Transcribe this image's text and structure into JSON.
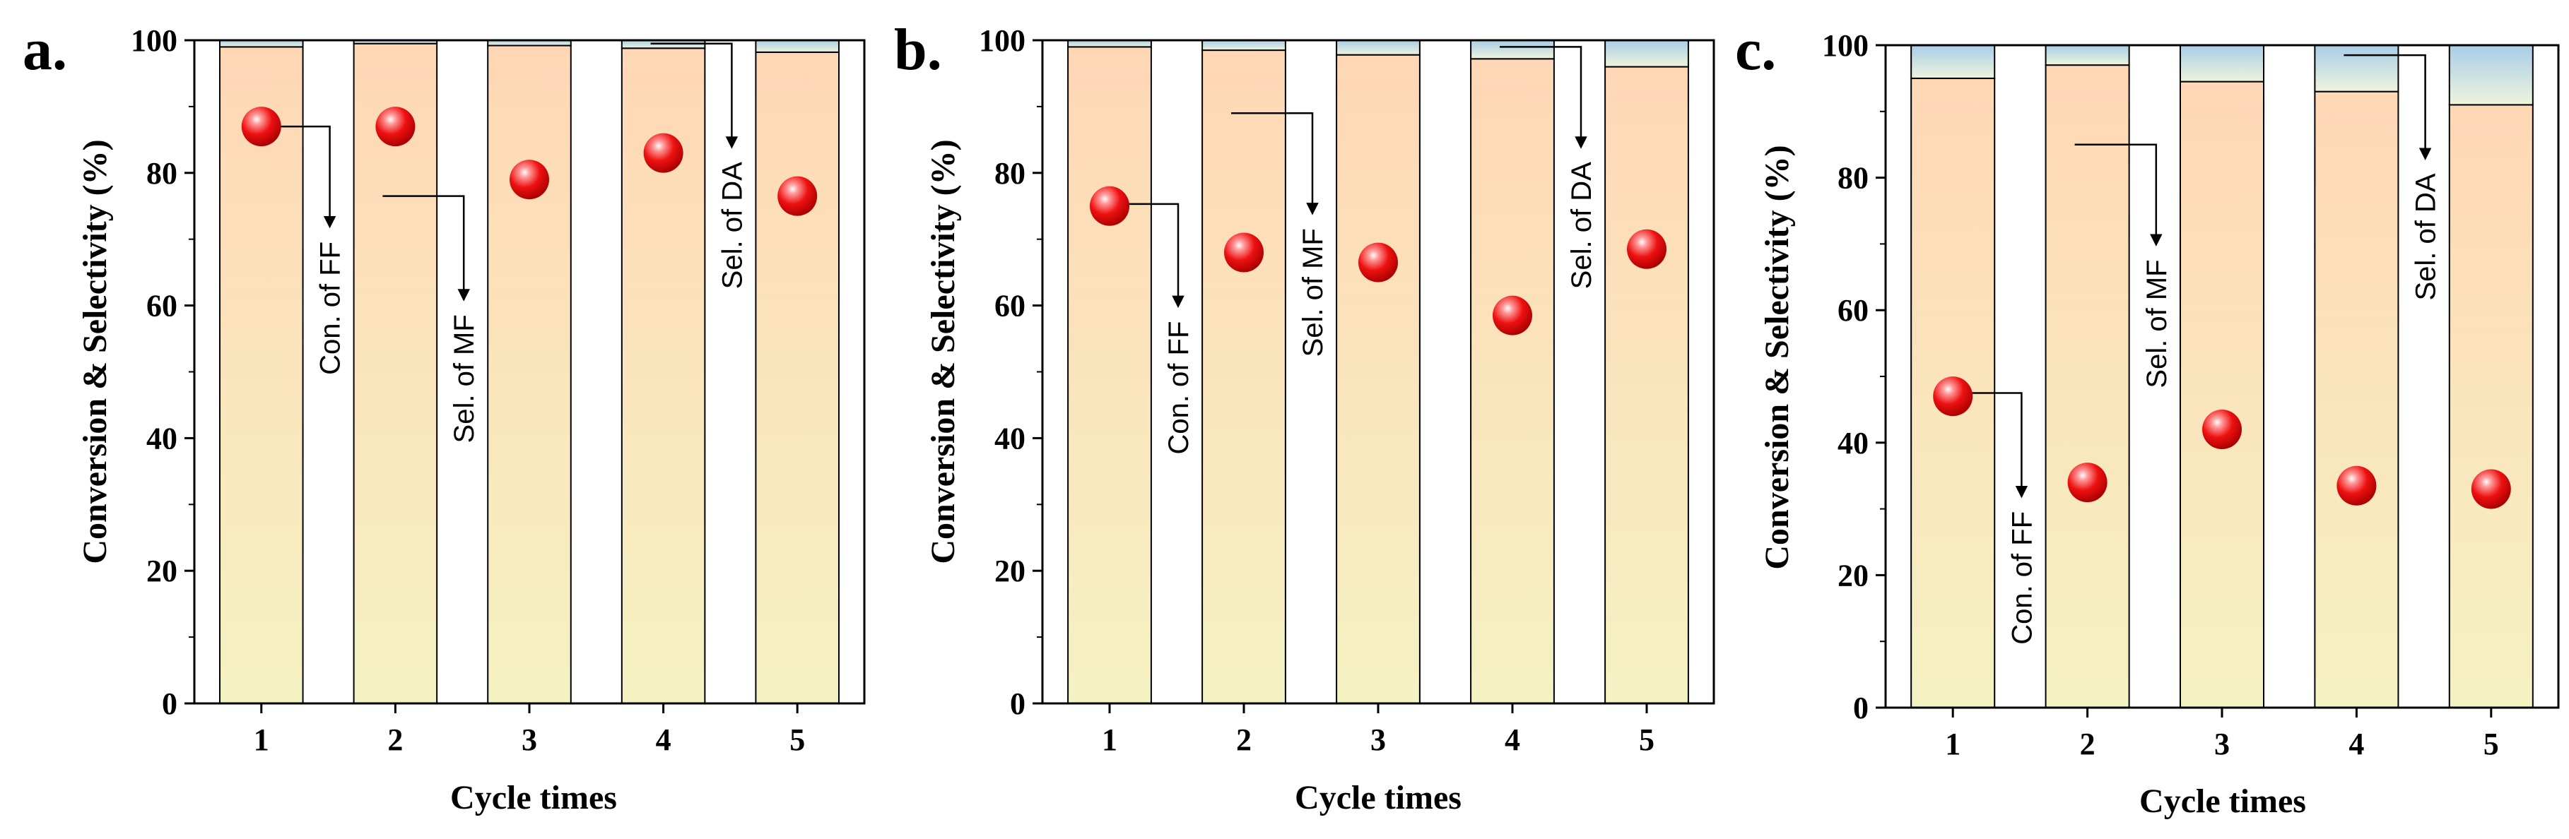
{
  "figure": {
    "panel_labels": [
      "a.",
      "b.",
      "c."
    ]
  },
  "colors": {
    "bar_top": "#ffd7b5",
    "bar_bottom": "#f5f2c2",
    "cap_top": "#a9cde8",
    "cap_bottom": "#eef4dc",
    "marker": "#ee1111",
    "axis": "#000000"
  },
  "chart_data": [
    {
      "type": "bar",
      "panel": "a.",
      "categories": [
        "1",
        "2",
        "3",
        "4",
        "5"
      ],
      "xlabel": "Cycle times",
      "ylabel": "Conversion & Selectivity (%)",
      "ylim": [
        0,
        100
      ],
      "yticks": [
        "0",
        "20",
        "40",
        "60",
        "80",
        "100"
      ],
      "series": [
        {
          "name": "Sel. of MF",
          "kind": "bar",
          "values": [
            99,
            99.5,
            99.2,
            98.8,
            98.2
          ]
        },
        {
          "name": "Sel. of DA",
          "kind": "bar-stacked",
          "values": [
            1,
            0.5,
            0.8,
            1.2,
            1.8
          ]
        },
        {
          "name": "Con. of FF",
          "kind": "scatter",
          "values": [
            87,
            87,
            79,
            83,
            76.5
          ]
        }
      ],
      "annotations": [
        {
          "text": "Con. of FF",
          "source_category": "1",
          "from_value": 87,
          "to_value": 72
        },
        {
          "text": "Sel. of MF",
          "source_category": "2",
          "from_value": 76.5,
          "to_value": 61
        },
        {
          "text": "Sel. of DA",
          "source_category": "4",
          "from_value": 99.5,
          "to_value": 84
        }
      ]
    },
    {
      "type": "bar",
      "panel": "b.",
      "categories": [
        "1",
        "2",
        "3",
        "4",
        "5"
      ],
      "xlabel": "Cycle times",
      "ylabel": "Conversion & Selectivity (%)",
      "ylim": [
        0,
        100
      ],
      "yticks": [
        "0",
        "20",
        "40",
        "60",
        "80",
        "100"
      ],
      "series": [
        {
          "name": "Sel. of MF",
          "kind": "bar",
          "values": [
            99,
            98.5,
            97.8,
            97.2,
            96
          ]
        },
        {
          "name": "Sel. of DA",
          "kind": "bar-stacked",
          "values": [
            1,
            1.5,
            2.2,
            2.8,
            4
          ]
        },
        {
          "name": "Con. of FF",
          "kind": "scatter",
          "values": [
            75,
            68,
            66.5,
            58.5,
            68.5
          ]
        }
      ],
      "annotations": [
        {
          "text": "Con. of FF",
          "source_category": "1",
          "from_value": 75.3,
          "to_value": 60
        },
        {
          "text": "Sel. of MF",
          "source_category": "2",
          "from_value": 89,
          "to_value": 74
        },
        {
          "text": "Sel. of DA",
          "source_category": "4",
          "from_value": 99,
          "to_value": 84
        }
      ]
    },
    {
      "type": "bar",
      "panel": "c.",
      "categories": [
        "1",
        "2",
        "3",
        "4",
        "5"
      ],
      "xlabel": "Cycle times",
      "ylabel": "Conversion & Selectivity (%)",
      "ylim": [
        0,
        100
      ],
      "yticks": [
        "0",
        "20",
        "40",
        "60",
        "80",
        "100"
      ],
      "series": [
        {
          "name": "Sel. of MF",
          "kind": "bar",
          "values": [
            95,
            97,
            94.5,
            93,
            91
          ]
        },
        {
          "name": "Sel. of DA",
          "kind": "bar-stacked",
          "values": [
            5,
            3,
            5.5,
            7,
            9
          ]
        },
        {
          "name": "Con. of FF",
          "kind": "scatter",
          "values": [
            47,
            34,
            42,
            33.5,
            33
          ]
        }
      ],
      "annotations": [
        {
          "text": "Con. of FF",
          "source_category": "1",
          "from_value": 47.5,
          "to_value": 32
        },
        {
          "text": "Sel. of MF",
          "source_category": "2",
          "from_value": 85,
          "to_value": 70
        },
        {
          "text": "Sel. of DA",
          "source_category": "4",
          "from_value": 98.5,
          "to_value": 83
        }
      ]
    }
  ]
}
